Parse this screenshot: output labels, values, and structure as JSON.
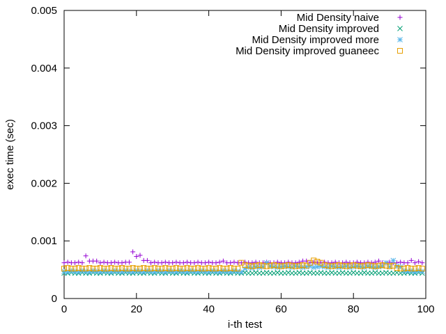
{
  "chart_data": {
    "type": "scatter",
    "title": "",
    "xlabel": "i-th test",
    "ylabel": "exec time (sec)",
    "xlim": [
      0,
      100
    ],
    "ylim": [
      0,
      0.005
    ],
    "xticks": [
      "0",
      "20",
      "40",
      "60",
      "80",
      "100"
    ],
    "yticks": [
      "0",
      "0.001",
      "0.002",
      "0.003",
      "0.004",
      "0.005"
    ],
    "grid": false,
    "legend_position": "top-right",
    "x": [
      0,
      1,
      2,
      3,
      4,
      5,
      6,
      7,
      8,
      9,
      10,
      11,
      12,
      13,
      14,
      15,
      16,
      17,
      18,
      19,
      20,
      21,
      22,
      23,
      24,
      25,
      26,
      27,
      28,
      29,
      30,
      31,
      32,
      33,
      34,
      35,
      36,
      37,
      38,
      39,
      40,
      41,
      42,
      43,
      44,
      45,
      46,
      47,
      48,
      49,
      50,
      51,
      52,
      53,
      54,
      55,
      56,
      57,
      58,
      59,
      60,
      61,
      62,
      63,
      64,
      65,
      66,
      67,
      68,
      69,
      70,
      71,
      72,
      73,
      74,
      75,
      76,
      77,
      78,
      79,
      80,
      81,
      82,
      83,
      84,
      85,
      86,
      87,
      88,
      89,
      90,
      91,
      92,
      93,
      94,
      95,
      96,
      97,
      98,
      99
    ],
    "series": [
      {
        "name": "Mid Density naive",
        "marker": "plus",
        "color": "#9400d3",
        "values": [
          0.00062,
          0.00063,
          0.00062,
          0.00062,
          0.00063,
          0.00062,
          0.00074,
          0.00065,
          0.00065,
          0.00065,
          0.00062,
          0.00063,
          0.00062,
          0.00062,
          0.00063,
          0.00062,
          0.00062,
          0.00063,
          0.00063,
          0.00081,
          0.00073,
          0.00075,
          0.00066,
          0.00066,
          0.00062,
          0.00063,
          0.00062,
          0.00062,
          0.00063,
          0.00062,
          0.00062,
          0.00063,
          0.00062,
          0.00062,
          0.00063,
          0.00062,
          0.00062,
          0.00063,
          0.00062,
          0.00062,
          0.00063,
          0.00062,
          0.00062,
          0.00063,
          0.00065,
          0.00062,
          0.00062,
          0.00063,
          0.00062,
          0.00062,
          0.00063,
          0.00062,
          0.00062,
          0.00063,
          0.00062,
          0.00062,
          0.00063,
          0.00062,
          0.00062,
          0.00063,
          0.00062,
          0.00062,
          0.00063,
          0.00062,
          0.00062,
          0.00063,
          0.00065,
          0.00065,
          0.00062,
          0.00063,
          0.00062,
          0.00062,
          0.00063,
          0.00062,
          0.00062,
          0.00063,
          0.00062,
          0.00062,
          0.00063,
          0.00062,
          0.00062,
          0.00063,
          0.00062,
          0.00062,
          0.00063,
          0.00062,
          0.00063,
          0.00065,
          0.00062,
          0.00062,
          0.00063,
          0.00062,
          0.00062,
          0.00063,
          0.00062,
          0.00062,
          0.00066,
          0.00062,
          0.00064,
          0.00062
        ]
      },
      {
        "name": "Mid Density improved",
        "marker": "cross",
        "color": "#009e73",
        "values": [
          0.00044,
          0.00044,
          0.00045,
          0.00044,
          0.00044,
          0.00045,
          0.00044,
          0.00044,
          0.00045,
          0.00044,
          0.00044,
          0.00045,
          0.00044,
          0.00044,
          0.00045,
          0.00044,
          0.00044,
          0.00045,
          0.00044,
          0.00044,
          0.00045,
          0.00044,
          0.00044,
          0.00045,
          0.00044,
          0.00044,
          0.00045,
          0.00044,
          0.00044,
          0.00045,
          0.00044,
          0.00044,
          0.00045,
          0.00044,
          0.00044,
          0.00045,
          0.00044,
          0.00044,
          0.00045,
          0.00044,
          0.00044,
          0.00045,
          0.00044,
          0.00044,
          0.00045,
          0.00044,
          0.00044,
          0.00045,
          0.00044,
          0.00044,
          0.00045,
          0.00044,
          0.00044,
          0.00045,
          0.00044,
          0.00044,
          0.00045,
          0.00044,
          0.00044,
          0.00045,
          0.00044,
          0.00044,
          0.00045,
          0.00044,
          0.00044,
          0.00045,
          0.00044,
          0.00044,
          0.00045,
          0.00044,
          0.00044,
          0.00045,
          0.00044,
          0.00044,
          0.00045,
          0.00044,
          0.00044,
          0.00045,
          0.00044,
          0.00044,
          0.00045,
          0.00044,
          0.00044,
          0.00045,
          0.00044,
          0.00044,
          0.00045,
          0.00044,
          0.00044,
          0.00045,
          0.00044,
          0.00044,
          0.00045,
          0.00044,
          0.00044,
          0.00045,
          0.00044,
          0.00044,
          0.00045,
          0.00044
        ]
      },
      {
        "name": "Mid Density improved more",
        "marker": "star",
        "color": "#56b4e9",
        "values": [
          0.00047,
          0.00046,
          0.00048,
          0.00047,
          0.00046,
          0.00048,
          0.00047,
          0.00046,
          0.00048,
          0.00047,
          0.00046,
          0.00048,
          0.00047,
          0.00046,
          0.00048,
          0.00047,
          0.00046,
          0.00048,
          0.00047,
          0.00046,
          0.00048,
          0.00047,
          0.00046,
          0.00048,
          0.00047,
          0.00046,
          0.00048,
          0.00047,
          0.00046,
          0.00048,
          0.00047,
          0.00046,
          0.00048,
          0.00047,
          0.00046,
          0.00048,
          0.00047,
          0.00046,
          0.00048,
          0.00047,
          0.00046,
          0.00048,
          0.00047,
          0.00046,
          0.00048,
          0.00047,
          0.00046,
          0.00048,
          0.00047,
          0.00046,
          0.00052,
          0.00054,
          0.00053,
          0.00055,
          0.00054,
          0.00055,
          0.00062,
          0.00056,
          0.00055,
          0.00054,
          0.00055,
          0.00056,
          0.00055,
          0.00054,
          0.00056,
          0.00055,
          0.00054,
          0.00055,
          0.00056,
          0.00054,
          0.00055,
          0.00056,
          0.00055,
          0.00054,
          0.00056,
          0.00055,
          0.00054,
          0.00055,
          0.00056,
          0.00054,
          0.00055,
          0.00056,
          0.00055,
          0.00054,
          0.00056,
          0.00055,
          0.00054,
          0.00055,
          0.00056,
          0.00062,
          0.00055,
          0.00066,
          0.00056,
          0.00055,
          0.00048,
          0.00047,
          0.00048,
          0.00046,
          0.00048,
          0.00047
        ]
      },
      {
        "name": "Mid Density improved guaneec",
        "marker": "square",
        "color": "#e69f00",
        "values": [
          0.00052,
          0.00053,
          0.00052,
          0.00052,
          0.00053,
          0.00052,
          0.00052,
          0.00053,
          0.00052,
          0.00052,
          0.00053,
          0.00052,
          0.00052,
          0.00053,
          0.00052,
          0.00052,
          0.00053,
          0.00052,
          0.00052,
          0.00053,
          0.00052,
          0.00052,
          0.00053,
          0.00052,
          0.00052,
          0.00053,
          0.00052,
          0.00052,
          0.00053,
          0.00052,
          0.00052,
          0.00053,
          0.00052,
          0.00052,
          0.00053,
          0.00052,
          0.00052,
          0.00053,
          0.00052,
          0.00052,
          0.00053,
          0.00052,
          0.00052,
          0.00053,
          0.00052,
          0.00052,
          0.00053,
          0.00052,
          0.00052,
          0.00062,
          0.00058,
          0.00057,
          0.00056,
          0.00057,
          0.00058,
          0.00057,
          0.00056,
          0.00057,
          0.00058,
          0.00057,
          0.00056,
          0.00057,
          0.00058,
          0.00057,
          0.00056,
          0.00057,
          0.00058,
          0.00057,
          0.00062,
          0.00066,
          0.00064,
          0.00062,
          0.00058,
          0.00057,
          0.00056,
          0.00057,
          0.00058,
          0.00057,
          0.00056,
          0.00057,
          0.00058,
          0.00057,
          0.00056,
          0.00057,
          0.00058,
          0.00057,
          0.00056,
          0.00057,
          0.00058,
          0.00057,
          0.00056,
          0.00057,
          0.00053,
          0.00052,
          0.00052,
          0.00053,
          0.00052,
          0.00052,
          0.00053,
          0.00052
        ]
      }
    ]
  }
}
